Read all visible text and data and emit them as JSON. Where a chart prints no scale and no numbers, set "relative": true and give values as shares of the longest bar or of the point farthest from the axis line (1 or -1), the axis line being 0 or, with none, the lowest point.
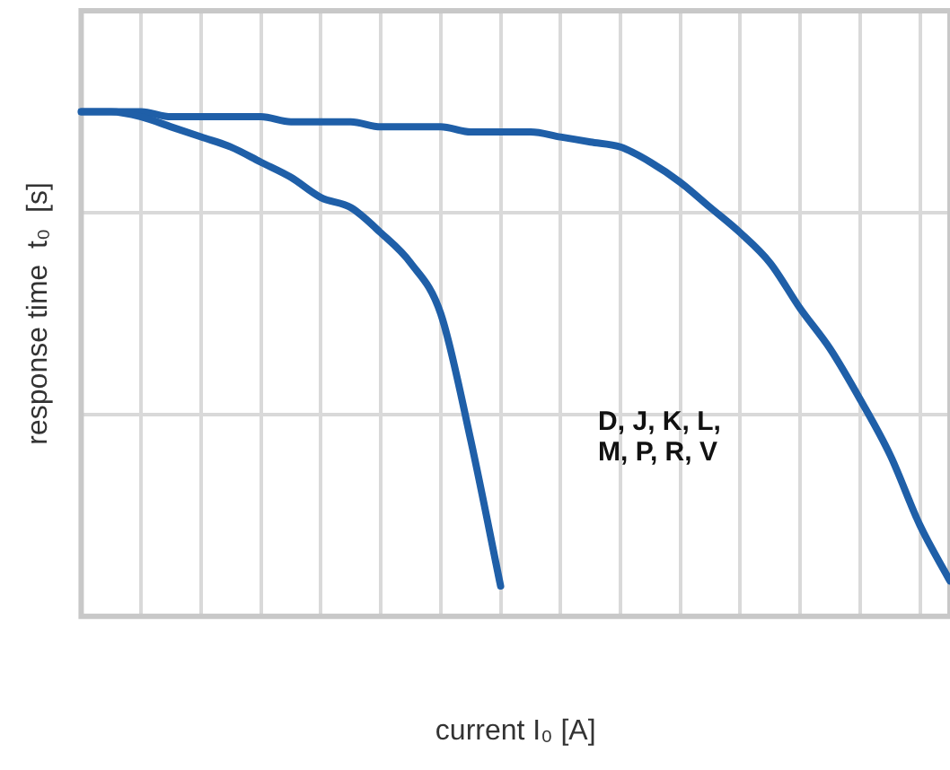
{
  "chart_data": {
    "type": "line",
    "relative": true,
    "xlabel": "current I₀ [A]",
    "ylabel": "response time  t₀  [s]",
    "categories": [
      null,
      null,
      null,
      null,
      null,
      null,
      null,
      null,
      null,
      null,
      null,
      null,
      null,
      null,
      null,
      null,
      null,
      null,
      null,
      null,
      null,
      null,
      null,
      null,
      null,
      null,
      null,
      null,
      null,
      null
    ],
    "series": [
      {
        "color": "#1f5fa8",
        "values": [
          1,
          1,
          0.99,
          0.97,
          0.95,
          0.93,
          0.9,
          0.87,
          0.83,
          0.81,
          0.76,
          0.7,
          0.6,
          0.35,
          0.06,
          null,
          null,
          null,
          null,
          null,
          null,
          null,
          null,
          null,
          null,
          null,
          null,
          null,
          null,
          null
        ]
      },
      {
        "color": "#1f5fa8",
        "values": [
          1,
          1,
          1,
          0.99,
          0.99,
          0.99,
          0.99,
          0.98,
          0.98,
          0.98,
          0.97,
          0.97,
          0.97,
          0.96,
          0.96,
          0.96,
          0.95,
          0.94,
          0.93,
          0.9,
          0.86,
          0.81,
          0.76,
          0.7,
          0.61,
          0.53,
          0.43,
          0.32,
          0.18,
          0.07
        ]
      }
    ],
    "annotations": [
      "D, J, K, L,\nM, P, R, V"
    ],
    "grid": true,
    "marker": "none",
    "line_style": "solid",
    "legend": false
  }
}
